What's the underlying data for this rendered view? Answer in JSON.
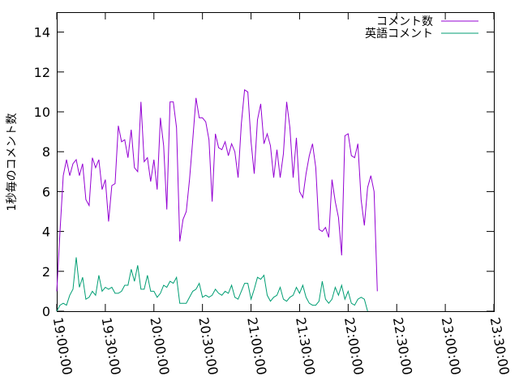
{
  "chart_data": {
    "type": "line",
    "ylabel": "1秒毎のコメント数",
    "xlabel": "",
    "ylim": [
      0,
      15
    ],
    "xlim": [
      "19:00:00",
      "23:30:00"
    ],
    "y_ticks": [
      "0",
      "2",
      "4",
      "6",
      "8",
      "10",
      "12",
      "14"
    ],
    "x_ticks": [
      "19:00:00",
      "19:30:00",
      "20:00:00",
      "20:30:00",
      "21:00:00",
      "21:30:00",
      "22:00:00",
      "22:30:00",
      "23:00:00",
      "23:30:00"
    ],
    "legend_position": "top-right",
    "grid": false,
    "series": [
      {
        "name": "コメント数",
        "color": "#9400d3",
        "points": [
          [
            "19:00:00",
            1.0
          ],
          [
            "19:02:00",
            4.0
          ],
          [
            "19:04:00",
            6.8
          ],
          [
            "19:06:00",
            7.6
          ],
          [
            "19:08:00",
            6.8
          ],
          [
            "19:10:00",
            7.4
          ],
          [
            "19:12:00",
            7.6
          ],
          [
            "19:14:00",
            6.8
          ],
          [
            "19:16:00",
            7.4
          ],
          [
            "19:18:00",
            5.6
          ],
          [
            "19:20:00",
            5.3
          ],
          [
            "19:22:00",
            7.7
          ],
          [
            "19:24:00",
            7.2
          ],
          [
            "19:26:00",
            7.6
          ],
          [
            "19:28:00",
            6.1
          ],
          [
            "19:30:00",
            6.6
          ],
          [
            "19:32:00",
            4.5
          ],
          [
            "19:34:00",
            6.3
          ],
          [
            "19:36:00",
            6.4
          ],
          [
            "19:38:00",
            9.3
          ],
          [
            "19:40:00",
            8.5
          ],
          [
            "19:42:00",
            8.6
          ],
          [
            "19:44:00",
            7.7
          ],
          [
            "19:46:00",
            9.1
          ],
          [
            "19:48:00",
            7.2
          ],
          [
            "19:50:00",
            7.0
          ],
          [
            "19:52:00",
            10.5
          ],
          [
            "19:54:00",
            7.5
          ],
          [
            "19:56:00",
            7.7
          ],
          [
            "19:58:00",
            6.5
          ],
          [
            "20:00:00",
            7.6
          ],
          [
            "20:02:00",
            6.1
          ],
          [
            "20:04:00",
            9.7
          ],
          [
            "20:06:00",
            8.3
          ],
          [
            "20:08:00",
            5.1
          ],
          [
            "20:10:00",
            10.5
          ],
          [
            "20:12:00",
            10.5
          ],
          [
            "20:14:00",
            9.2
          ],
          [
            "20:16:00",
            3.5
          ],
          [
            "20:18:00",
            4.6
          ],
          [
            "20:20:00",
            5.0
          ],
          [
            "20:22:00",
            6.6
          ],
          [
            "20:24:00",
            8.6
          ],
          [
            "20:26:00",
            10.7
          ],
          [
            "20:28:00",
            9.7
          ],
          [
            "20:30:00",
            9.7
          ],
          [
            "20:32:00",
            9.5
          ],
          [
            "20:34:00",
            8.6
          ],
          [
            "20:36:00",
            5.5
          ],
          [
            "20:38:00",
            8.9
          ],
          [
            "20:40:00",
            8.2
          ],
          [
            "20:42:00",
            8.1
          ],
          [
            "20:44:00",
            8.5
          ],
          [
            "20:46:00",
            7.8
          ],
          [
            "20:48:00",
            8.4
          ],
          [
            "20:50:00",
            8.0
          ],
          [
            "20:52:00",
            6.7
          ],
          [
            "20:54:00",
            9.4
          ],
          [
            "20:56:00",
            11.1
          ],
          [
            "20:58:00",
            11.0
          ],
          [
            "21:00:00",
            8.5
          ],
          [
            "21:02:00",
            6.9
          ],
          [
            "21:04:00",
            9.6
          ],
          [
            "21:06:00",
            10.4
          ],
          [
            "21:08:00",
            8.4
          ],
          [
            "21:10:00",
            8.9
          ],
          [
            "21:12:00",
            8.3
          ],
          [
            "21:14:00",
            6.7
          ],
          [
            "21:16:00",
            8.1
          ],
          [
            "21:18:00",
            6.7
          ],
          [
            "21:20:00",
            7.9
          ],
          [
            "21:22:00",
            10.5
          ],
          [
            "21:24:00",
            9.2
          ],
          [
            "21:26:00",
            6.7
          ],
          [
            "21:28:00",
            8.7
          ],
          [
            "21:30:00",
            6.0
          ],
          [
            "21:32:00",
            5.7
          ],
          [
            "21:34:00",
            6.9
          ],
          [
            "21:36:00",
            7.8
          ],
          [
            "21:38:00",
            8.4
          ],
          [
            "21:40:00",
            7.2
          ],
          [
            "21:42:00",
            4.1
          ],
          [
            "21:44:00",
            4.0
          ],
          [
            "21:46:00",
            4.2
          ],
          [
            "21:48:00",
            3.7
          ],
          [
            "21:50:00",
            6.6
          ],
          [
            "21:52:00",
            5.5
          ],
          [
            "21:54:00",
            4.7
          ],
          [
            "21:56:00",
            2.8
          ],
          [
            "21:58:00",
            8.8
          ],
          [
            "22:00:00",
            8.9
          ],
          [
            "22:02:00",
            7.8
          ],
          [
            "22:04:00",
            7.7
          ],
          [
            "22:06:00",
            8.4
          ],
          [
            "22:08:00",
            5.6
          ],
          [
            "22:10:00",
            4.3
          ],
          [
            "22:12:00",
            6.2
          ],
          [
            "22:14:00",
            6.8
          ],
          [
            "22:16:00",
            6.0
          ],
          [
            "22:18:00",
            1.0
          ]
        ]
      },
      {
        "name": "英語コメント",
        "color": "#009e73",
        "points": [
          [
            "19:00:00",
            0.0
          ],
          [
            "19:02:00",
            0.3
          ],
          [
            "19:04:00",
            0.4
          ],
          [
            "19:06:00",
            0.3
          ],
          [
            "19:08:00",
            0.8
          ],
          [
            "19:10:00",
            1.1
          ],
          [
            "19:12:00",
            2.7
          ],
          [
            "19:14:00",
            1.2
          ],
          [
            "19:16:00",
            1.7
          ],
          [
            "19:18:00",
            0.6
          ],
          [
            "19:20:00",
            0.7
          ],
          [
            "19:22:00",
            1.0
          ],
          [
            "19:24:00",
            0.8
          ],
          [
            "19:26:00",
            1.8
          ],
          [
            "19:28:00",
            1.0
          ],
          [
            "19:30:00",
            1.2
          ],
          [
            "19:32:00",
            1.1
          ],
          [
            "19:34:00",
            1.2
          ],
          [
            "19:36:00",
            0.9
          ],
          [
            "19:38:00",
            0.9
          ],
          [
            "19:40:00",
            1.0
          ],
          [
            "19:42:00",
            1.3
          ],
          [
            "19:44:00",
            1.3
          ],
          [
            "19:46:00",
            2.1
          ],
          [
            "19:48:00",
            1.5
          ],
          [
            "19:50:00",
            2.3
          ],
          [
            "19:52:00",
            1.1
          ],
          [
            "19:54:00",
            1.1
          ],
          [
            "19:56:00",
            1.8
          ],
          [
            "19:58:00",
            1.0
          ],
          [
            "20:00:00",
            1.0
          ],
          [
            "20:02:00",
            0.7
          ],
          [
            "20:04:00",
            0.9
          ],
          [
            "20:06:00",
            1.3
          ],
          [
            "20:08:00",
            1.2
          ],
          [
            "20:10:00",
            1.5
          ],
          [
            "20:12:00",
            1.4
          ],
          [
            "20:14:00",
            1.7
          ],
          [
            "20:16:00",
            0.4
          ],
          [
            "20:18:00",
            0.4
          ],
          [
            "20:20:00",
            0.4
          ],
          [
            "20:22:00",
            0.7
          ],
          [
            "20:24:00",
            1.0
          ],
          [
            "20:26:00",
            1.1
          ],
          [
            "20:28:00",
            1.4
          ],
          [
            "20:30:00",
            0.7
          ],
          [
            "20:32:00",
            0.8
          ],
          [
            "20:34:00",
            0.7
          ],
          [
            "20:36:00",
            0.8
          ],
          [
            "20:38:00",
            1.1
          ],
          [
            "20:40:00",
            0.9
          ],
          [
            "20:42:00",
            0.8
          ],
          [
            "20:44:00",
            1.0
          ],
          [
            "20:46:00",
            0.9
          ],
          [
            "20:48:00",
            1.3
          ],
          [
            "20:50:00",
            0.7
          ],
          [
            "20:52:00",
            0.6
          ],
          [
            "20:54:00",
            1.0
          ],
          [
            "20:56:00",
            1.4
          ],
          [
            "20:58:00",
            1.4
          ],
          [
            "21:00:00",
            0.6
          ],
          [
            "21:02:00",
            1.1
          ],
          [
            "21:04:00",
            1.7
          ],
          [
            "21:06:00",
            1.6
          ],
          [
            "21:08:00",
            1.8
          ],
          [
            "21:10:00",
            0.8
          ],
          [
            "21:12:00",
            0.5
          ],
          [
            "21:14:00",
            0.7
          ],
          [
            "21:16:00",
            0.8
          ],
          [
            "21:18:00",
            1.2
          ],
          [
            "21:20:00",
            0.6
          ],
          [
            "21:22:00",
            0.5
          ],
          [
            "21:24:00",
            0.7
          ],
          [
            "21:26:00",
            0.8
          ],
          [
            "21:28:00",
            1.2
          ],
          [
            "21:30:00",
            0.9
          ],
          [
            "21:32:00",
            1.3
          ],
          [
            "21:34:00",
            0.7
          ],
          [
            "21:36:00",
            0.4
          ],
          [
            "21:38:00",
            0.3
          ],
          [
            "21:40:00",
            0.3
          ],
          [
            "21:42:00",
            0.5
          ],
          [
            "21:44:00",
            1.5
          ],
          [
            "21:46:00",
            0.6
          ],
          [
            "21:48:00",
            0.4
          ],
          [
            "21:50:00",
            0.6
          ],
          [
            "21:52:00",
            1.2
          ],
          [
            "21:54:00",
            0.8
          ],
          [
            "21:56:00",
            1.3
          ],
          [
            "21:58:00",
            0.6
          ],
          [
            "22:00:00",
            1.0
          ],
          [
            "22:02:00",
            0.4
          ],
          [
            "22:04:00",
            0.3
          ],
          [
            "22:06:00",
            0.6
          ],
          [
            "22:08:00",
            0.7
          ],
          [
            "22:10:00",
            0.6
          ],
          [
            "22:12:00",
            0.0
          ]
        ]
      }
    ]
  }
}
